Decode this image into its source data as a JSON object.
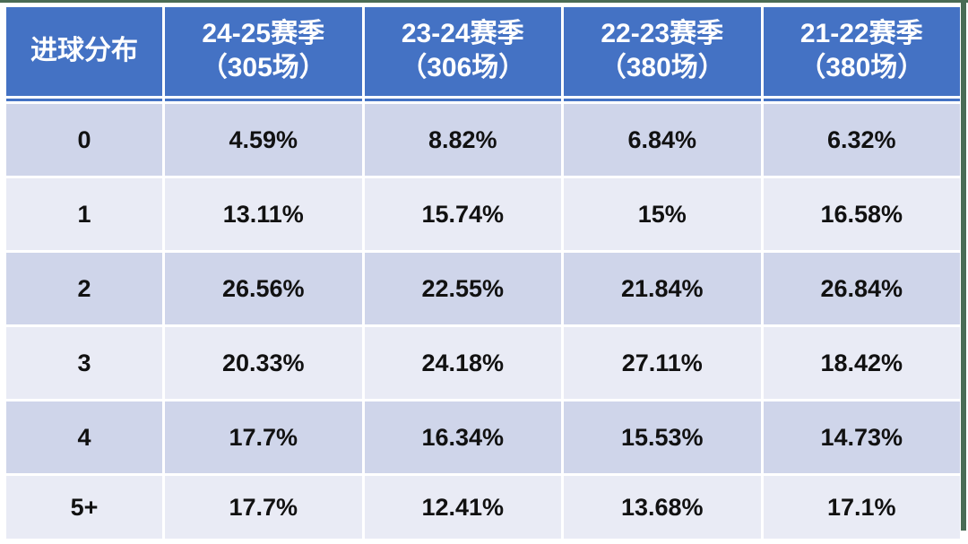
{
  "table": {
    "header": {
      "corner": "进球分布",
      "seasons": [
        {
          "title": "24-25赛季",
          "subtitle": "（305场）"
        },
        {
          "title": "23-24赛季",
          "subtitle": "（306场）"
        },
        {
          "title": "22-23赛季",
          "subtitle": "（380场）"
        },
        {
          "title": "21-22赛季",
          "subtitle": "（380场）"
        }
      ]
    },
    "rows": [
      {
        "label": "0",
        "values": [
          "4.59%",
          "8.82%",
          "6.84%",
          "6.32%"
        ]
      },
      {
        "label": "1",
        "values": [
          "13.11%",
          "15.74%",
          "15%",
          "16.58%"
        ]
      },
      {
        "label": "2",
        "values": [
          "26.56%",
          "22.55%",
          "21.84%",
          "26.84%"
        ]
      },
      {
        "label": "3",
        "values": [
          "20.33%",
          "24.18%",
          "27.11%",
          "18.42%"
        ]
      },
      {
        "label": "4",
        "values": [
          "17.7%",
          "16.34%",
          "15.53%",
          "14.73%"
        ]
      },
      {
        "label": "5+",
        "values": [
          "17.7%",
          "12.41%",
          "13.68%",
          "17.1%"
        ]
      }
    ]
  },
  "colors": {
    "header_bg": "#4472C4",
    "band_dark": "#CFD5EA",
    "band_light": "#E9EBF5",
    "header_text": "#FFFFFF",
    "body_text": "#111111",
    "edge_green": "#4A6B54",
    "page_bg": "#FFFFFF"
  },
  "chart_data": {
    "type": "table",
    "title": "进球分布",
    "categories": [
      "0",
      "1",
      "2",
      "3",
      "4",
      "5+"
    ],
    "series": [
      {
        "name": "24-25赛季（305场）",
        "values": [
          4.59,
          13.11,
          26.56,
          20.33,
          17.7,
          17.7
        ]
      },
      {
        "name": "23-24赛季（306场）",
        "values": [
          8.82,
          15.74,
          22.55,
          24.18,
          16.34,
          12.41
        ]
      },
      {
        "name": "22-23赛季（380场）",
        "values": [
          6.84,
          15,
          21.84,
          27.11,
          15.53,
          13.68
        ]
      },
      {
        "name": "21-22赛季（380场）",
        "values": [
          6.32,
          16.58,
          26.84,
          18.42,
          14.73,
          17.1
        ]
      }
    ],
    "value_unit": "%"
  }
}
